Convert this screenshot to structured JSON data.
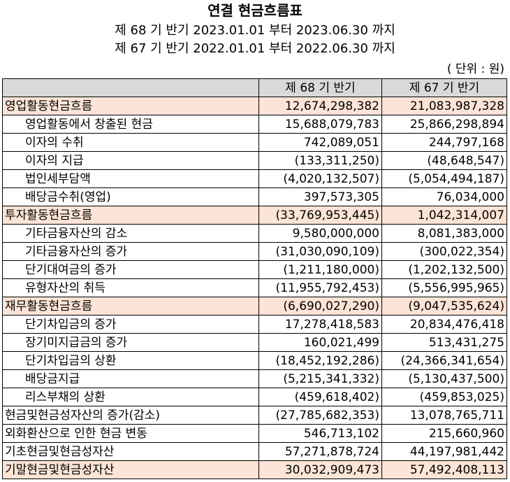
{
  "title": "연결 현금흐름표",
  "subtitle1": "제 68 기 반기 2023.01.01 부터 2023.06.30 까지",
  "subtitle2": "제 67 기 반기 2022.01.01 부터 2022.06.30 까지",
  "unit": "( 단위 : 원)",
  "columns": [
    "",
    "제 68 기 반기",
    "제 67 기 반기"
  ],
  "rows": [
    {
      "label": "영업활동현금흐름",
      "v68": "12,674,298,382",
      "v67": "21,083,987,328"
    },
    {
      "label": "영업활동에서 창출된 현금",
      "v68": "15,688,079,783",
      "v67": "25,866,298,894"
    },
    {
      "label": "이자의 수취",
      "v68": "742,089,051",
      "v67": "244,797,168"
    },
    {
      "label": "이자의 지급",
      "v68": "(133,311,250)",
      "v67": "(48,648,547)"
    },
    {
      "label": "법인세부담액",
      "v68": "(4,020,132,507)",
      "v67": "(5,054,494,187)"
    },
    {
      "label": "배당금수취(영업)",
      "v68": "397,573,305",
      "v67": "76,034,000"
    },
    {
      "label": "투자활동현금흐름",
      "v68": "(33,769,953,445)",
      "v67": "1,042,314,007"
    },
    {
      "label": "기타금융자산의 감소",
      "v68": "9,580,000,000",
      "v67": "8,081,383,000"
    },
    {
      "label": "기타금융자산의 증가",
      "v68": "(31,030,090,109)",
      "v67": "(300,022,354)"
    },
    {
      "label": "단기대여금의 증가",
      "v68": "(1,211,180,000)",
      "v67": "(1,202,132,500)"
    },
    {
      "label": "유형자산의 취득",
      "v68": "(11,955,792,453)",
      "v67": "(5,556,995,965)"
    },
    {
      "label": "재무활동현금흐름",
      "v68": "(6,690,027,290)",
      "v67": "(9,047,535,624)"
    },
    {
      "label": "단기차입금의 증가",
      "v68": "17,278,418,583",
      "v67": "20,834,476,418"
    },
    {
      "label": "장기미지급금의 증가",
      "v68": "160,021,499",
      "v67": "513,431,275"
    },
    {
      "label": "단기차입금의 상환",
      "v68": "(18,452,192,286)",
      "v67": "(24,366,341,654)"
    },
    {
      "label": "배당금지급",
      "v68": "(5,215,341,332)",
      "v67": "(5,130,437,500)"
    },
    {
      "label": "리스부채의 상환",
      "v68": "(459,618,402)",
      "v67": "(459,853,025)"
    },
    {
      "label": "현금및현금성자산의 증가(감소)",
      "v68": "(27,785,682,353)",
      "v67": "13,078,765,711"
    },
    {
      "label": "외화환산으로 인한 현금 변동",
      "v68": "546,713,102",
      "v67": "215,660,960"
    },
    {
      "label": "기초현금및현금성자산",
      "v68": "57,271,878,724",
      "v67": "44,197,981,442"
    },
    {
      "label": "기말현금및현금성자산",
      "v68": "30,032,909,473",
      "v67": "57,492,408,113"
    }
  ],
  "colors": {
    "section_highlight": "#fce4d6",
    "header": "#d9d9d9"
  }
}
